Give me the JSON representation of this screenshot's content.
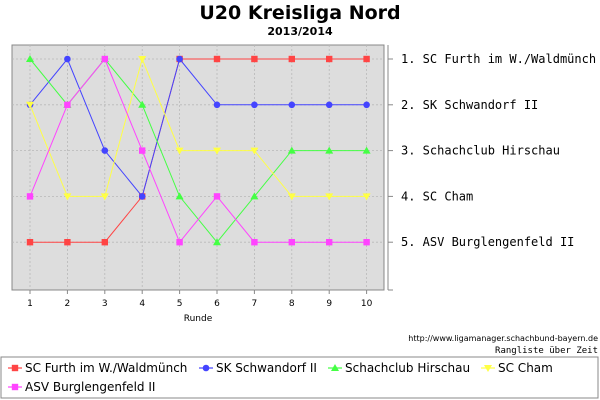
{
  "chart_data": {
    "type": "line",
    "title": "U20 Kreisliga Nord",
    "subtitle": "2013/2014",
    "xlabel": "Runde",
    "x": [
      1,
      2,
      3,
      4,
      5,
      6,
      7,
      8,
      9,
      10
    ],
    "ylim": [
      1,
      5
    ],
    "y_inverted": true,
    "grid": true,
    "legend_position": "bottom",
    "rank_labels": [
      "1. SC Furth im W./Waldmünch",
      "2. SK Schwandorf II",
      "3. Schachclub Hirschau",
      "4. SC Cham",
      "5. ASV Burglengenfeld II"
    ],
    "series": [
      {
        "name": "SC Furth im W./Waldmünch",
        "color": "#ff4444",
        "marker": "square",
        "values": [
          5,
          5,
          5,
          4,
          1,
          1,
          1,
          1,
          1,
          1
        ]
      },
      {
        "name": "SK Schwandorf II",
        "color": "#4444ff",
        "marker": "circle",
        "values": [
          2,
          1,
          3,
          4,
          1,
          2,
          2,
          2,
          2,
          2
        ]
      },
      {
        "name": "Schachclub Hirschau",
        "color": "#44ff44",
        "marker": "triangle",
        "values": [
          1,
          2,
          1,
          2,
          4,
          5,
          4,
          3,
          3,
          3
        ]
      },
      {
        "name": "SC Cham",
        "color": "#ffff44",
        "marker": "triangle-down",
        "values": [
          2,
          4,
          4,
          1,
          3,
          3,
          3,
          4,
          4,
          4
        ]
      },
      {
        "name": "ASV Burglengenfeld II",
        "color": "#ff44ff",
        "marker": "square",
        "values": [
          4,
          2,
          1,
          3,
          5,
          4,
          5,
          5,
          5,
          5
        ]
      }
    ],
    "source": "http://www.ligamanager.schachbund-bayern.de",
    "caption": "Rangliste über Zeit"
  }
}
